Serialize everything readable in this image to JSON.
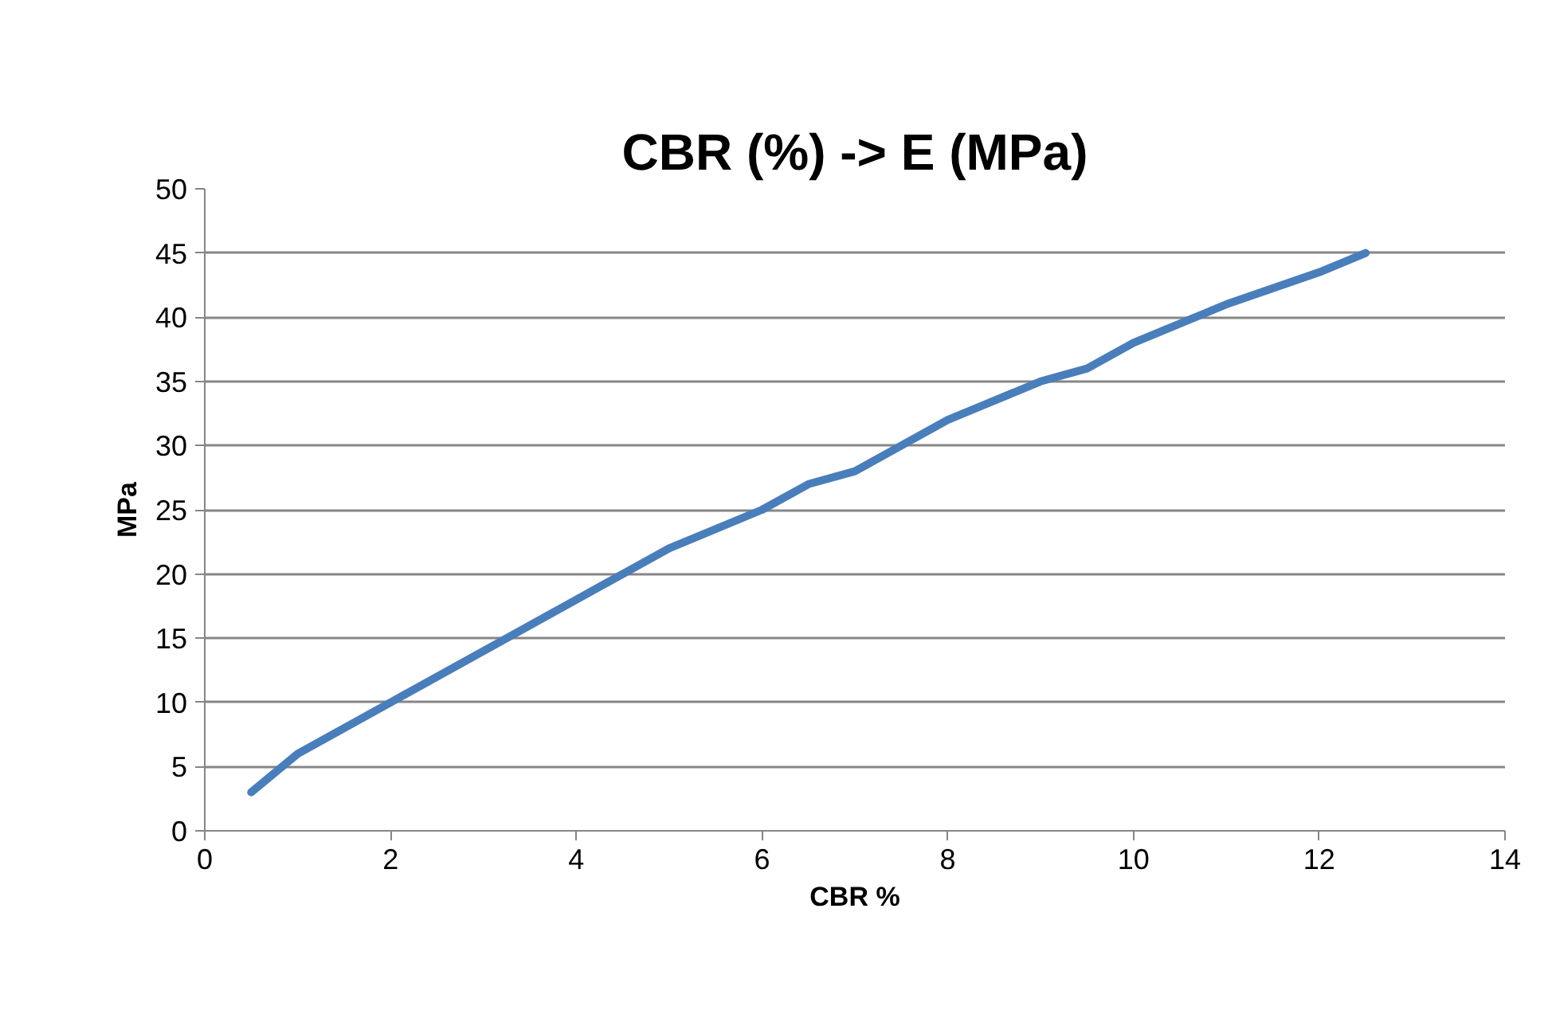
{
  "chart_data": {
    "type": "line",
    "title": "CBR (%) -> E (MPa)",
    "xlabel": "CBR %",
    "ylabel": "MPa",
    "x": [
      0.5,
      1,
      1.5,
      2,
      3,
      4,
      5,
      6,
      6.5,
      7,
      8,
      9,
      9.5,
      10,
      11,
      12,
      12.5
    ],
    "series": [
      {
        "color": "#4a7ebb",
        "values": [
          3,
          6,
          8,
          10,
          14,
          18,
          22,
          25,
          27,
          28,
          32,
          35,
          36,
          38,
          41,
          43.5,
          45
        ]
      }
    ],
    "xlim": [
      0,
      14
    ],
    "xticks": [
      0,
      2,
      4,
      6,
      8,
      10,
      12,
      14
    ],
    "ylim": [
      0,
      50
    ],
    "yticks": [
      0,
      5,
      10,
      15,
      20,
      25,
      30,
      35,
      40,
      45,
      50
    ],
    "grid": "y",
    "marker": "none",
    "line_style": "solid"
  }
}
